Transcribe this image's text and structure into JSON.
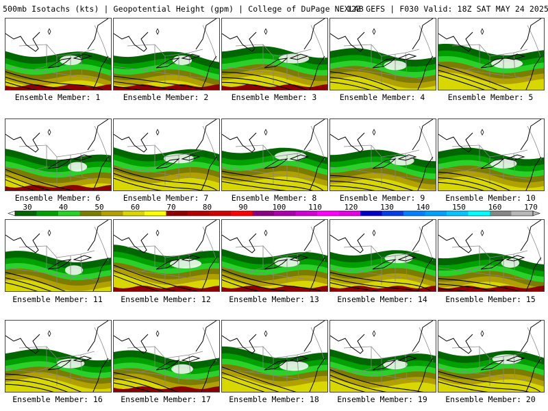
{
  "header": {
    "left": "500mb Isotachs (kts) | Geopotential Height (gpm) | College of DuPage NEXLAB",
    "right": "12Z GEFS | F030 Valid: 18Z SAT MAY 24 2025"
  },
  "members": [
    {
      "label": "Ensemble Member: 1",
      "jet": 0.55,
      "hasRed": true
    },
    {
      "label": "Ensemble Member: 2",
      "jet": 0.45,
      "hasRed": true
    },
    {
      "label": "Ensemble Member: 3",
      "jet": 0.9,
      "hasRed": true
    },
    {
      "label": "Ensemble Member: 4",
      "jet": 0.6,
      "hasRed": false
    },
    {
      "label": "Ensemble Member: 5",
      "jet": 0.95,
      "hasRed": false
    },
    {
      "label": "Ensemble Member: 6",
      "jet": 0.45,
      "hasRed": true
    },
    {
      "label": "Ensemble Member: 7",
      "jet": 0.9,
      "hasRed": false
    },
    {
      "label": "Ensemble Member: 8",
      "jet": 0.95,
      "hasRed": false
    },
    {
      "label": "Ensemble Member: 9",
      "jet": 0.65,
      "hasRed": false
    },
    {
      "label": "Ensemble Member: 10",
      "jet": 0.75,
      "hasRed": false
    },
    {
      "label": "Ensemble Member: 11",
      "jet": 0.4,
      "hasRed": false
    },
    {
      "label": "Ensemble Member: 12",
      "jet": 0.95,
      "hasRed": true
    },
    {
      "label": "Ensemble Member: 13",
      "jet": 0.7,
      "hasRed": true
    },
    {
      "label": "Ensemble Member: 14",
      "jet": 0.8,
      "hasRed": true
    },
    {
      "label": "Ensemble Member: 15",
      "jet": 0.4,
      "hasRed": true
    },
    {
      "label": "Ensemble Member: 16",
      "jet": 0.8,
      "hasRed": false
    },
    {
      "label": "Ensemble Member: 17",
      "jet": 0.55,
      "hasRed": true
    },
    {
      "label": "Ensemble Member: 18",
      "jet": 0.85,
      "hasRed": false
    },
    {
      "label": "Ensemble Member: 19",
      "jet": 0.65,
      "hasRed": false
    },
    {
      "label": "Ensemble Member: 20",
      "jet": 0.85,
      "hasRed": false
    }
  ],
  "legend": {
    "labels": [
      "30",
      "40",
      "50",
      "60",
      "70",
      "80",
      "90",
      "100",
      "110",
      "120",
      "130",
      "140",
      "150",
      "160",
      "170"
    ],
    "colors": [
      "#006600",
      "#00a000",
      "#2bd12b",
      "#7c7c00",
      "#b0a000",
      "#d8d800",
      "#ffff00",
      "#8c0000",
      "#b00000",
      "#d00000",
      "#ff0000",
      "#880088",
      "#aa00aa",
      "#d000d0",
      "#ff00ff",
      "#e000e0",
      "#0000c8",
      "#0040e0",
      "#0080ff",
      "#00a0ff",
      "#00c8ff",
      "#00ffff",
      "#888888",
      "#b8b8b8"
    ],
    "units": "kts"
  },
  "colors": {
    "dark_green": "#006600",
    "green": "#00a000",
    "light_green": "#2bd12b",
    "olive": "#7c7c00",
    "dark_yellow": "#b0a000",
    "yellow": "#d8d800",
    "dark_red": "#8c0000",
    "boundary": "#888888",
    "coast": "#000000"
  }
}
